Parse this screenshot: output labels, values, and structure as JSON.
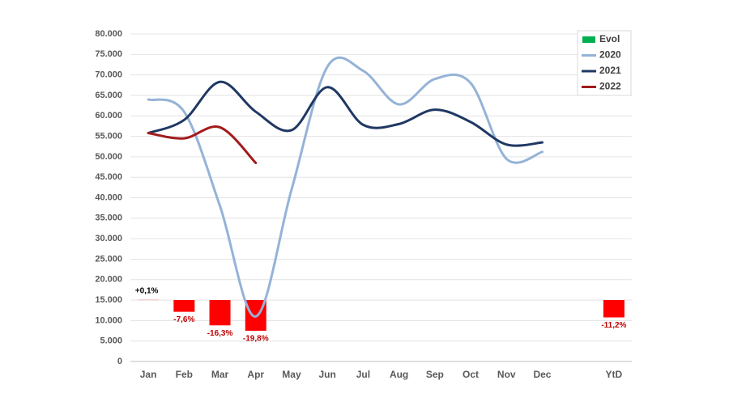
{
  "chart_data": {
    "type": "line",
    "categories": [
      "Jan",
      "Feb",
      "Mar",
      "Apr",
      "May",
      "Jun",
      "Jul",
      "Aug",
      "Sep",
      "Oct",
      "Nov",
      "Dec",
      null,
      "YtD"
    ],
    "series": [
      {
        "name": "Evol",
        "type": "bar",
        "axis": "y2",
        "color": "#00b050",
        "bar_color": "#ff0000",
        "values": [
          0.1,
          -7.6,
          -16.3,
          -19.8,
          null,
          null,
          null,
          null,
          null,
          null,
          null,
          null,
          null,
          -11.2
        ],
        "value_labels": [
          "+0,1%",
          "-7,6%",
          "-16,3%",
          "-19,8%",
          null,
          null,
          null,
          null,
          null,
          null,
          null,
          null,
          null,
          "-11,2%"
        ]
      },
      {
        "name": "2020",
        "color": "#95b3d7",
        "values": [
          64000,
          61000,
          38000,
          11000,
          42000,
          72000,
          71000,
          62800,
          69000,
          68000,
          49500,
          51200,
          null,
          null
        ]
      },
      {
        "name": "2021",
        "color": "#1f3864",
        "values": [
          55800,
          59000,
          68300,
          61000,
          56500,
          67000,
          57800,
          58000,
          61500,
          58500,
          53000,
          53500,
          null,
          null
        ]
      },
      {
        "name": "2022",
        "color": "#a31b1b",
        "values": [
          55800,
          54500,
          57200,
          48500,
          null,
          null,
          null,
          null,
          null,
          null,
          null,
          null,
          null,
          null
        ]
      }
    ],
    "ylim": [
      0,
      80000
    ],
    "yticks": [
      0,
      {
        "value": 5000,
        "label": "5.000"
      },
      {
        "value": 10000,
        "label": "10.000"
      },
      {
        "value": 15000,
        "label": "15.000"
      },
      {
        "value": 20000,
        "label": "20.000"
      },
      {
        "value": 25000,
        "label": "25.000"
      },
      {
        "value": 30000,
        "label": "30.000"
      },
      {
        "value": 35000,
        "label": "35.000"
      },
      {
        "value": 40000,
        "label": "40.000"
      },
      {
        "value": 45000,
        "label": "45.000"
      },
      {
        "value": 50000,
        "label": "50.000"
      },
      {
        "value": 55000,
        "label": "55.000"
      },
      {
        "value": 60000,
        "label": "60.000"
      },
      {
        "value": 65000,
        "label": "65.000"
      },
      {
        "value": 70000,
        "label": "70.000"
      },
      {
        "value": 75000,
        "label": "75.000"
      },
      {
        "value": 80000,
        "label": "80.000"
      }
    ],
    "y2lim": [
      -39.6,
      171.5
    ],
    "grid": true,
    "legend": "upper right"
  }
}
